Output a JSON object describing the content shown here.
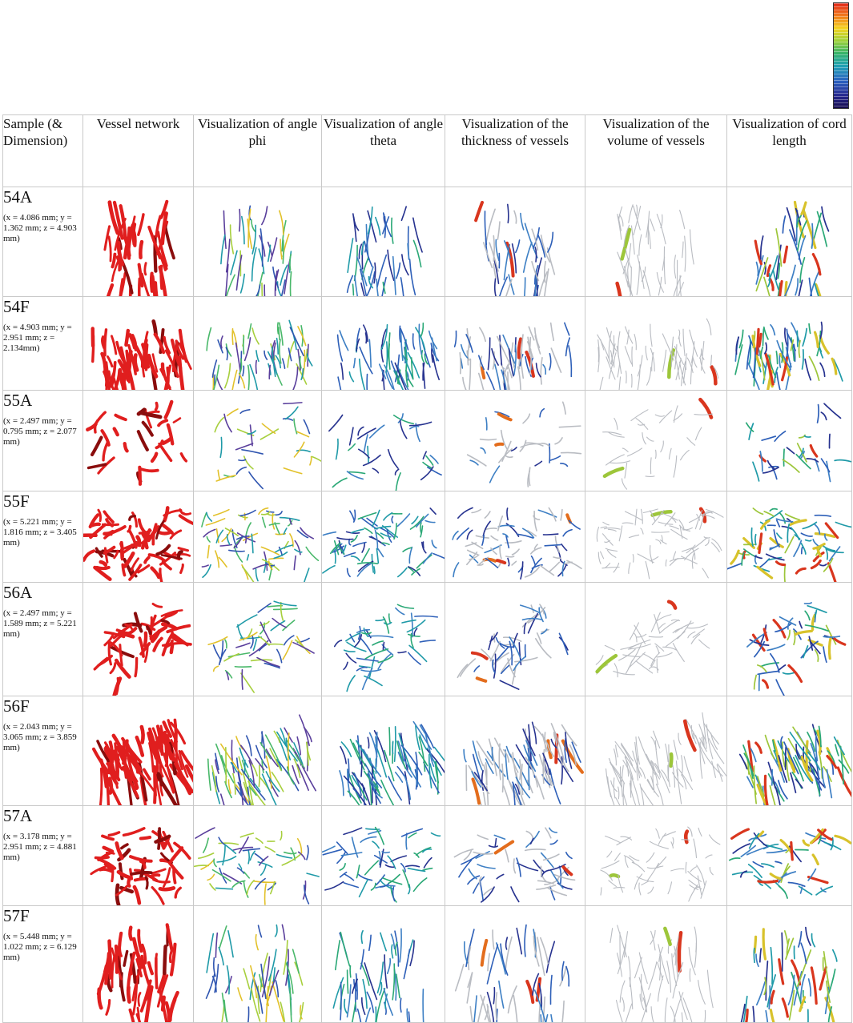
{
  "colorbar": {
    "colors": [
      "#e2281b",
      "#f07a1c",
      "#f4d21e",
      "#9dd23a",
      "#34b26b",
      "#1fa0b5",
      "#2b62c0",
      "#27288f",
      "#150b4d"
    ]
  },
  "headers": [
    "Sample (& Dimension)",
    "Vessel network",
    "Visualization of angle phi",
    "Visualization of angle theta",
    "Visualization of the thickness of vessels",
    "Visualization of the volume of vessels",
    "Visualization of cord length"
  ],
  "samples": [
    {
      "id": "54A",
      "dimension": "(x = 4.086 mm; y = 1.362 mm; z = 4.903 mm)"
    },
    {
      "id": "54F",
      "dimension": "(x = 4.903 mm; y = 2.951 mm; z = 2.134mm)"
    },
    {
      "id": "55A",
      "dimension": "(x = 2.497 mm; y = 0.795 mm; z = 2.077 mm)"
    },
    {
      "id": "55F",
      "dimension": "(x = 5.221 mm; y = 1.816 mm; z = 3.405 mm)"
    },
    {
      "id": "56A",
      "dimension": "(x = 2.497 mm; y = 1.589 mm; z = 5.221 mm)"
    },
    {
      "id": "56F",
      "dimension": "(x = 2.043 mm; y = 3.065 mm; z = 3.859 mm)"
    },
    {
      "id": "57A",
      "dimension": "(x = 3.178 mm; y = 2.951 mm; z = 4.881 mm)"
    },
    {
      "id": "57F",
      "dimension": "(x = 5.448 mm; y = 1.022 mm; z = 6.129 mm)"
    }
  ],
  "colors": {
    "network_red": "#e01e1e",
    "network_dark": "#8a0d0d",
    "thin_gray": "#b9bcc2",
    "palette_blue": [
      "#26328f",
      "#2d5fb8",
      "#3d7fc4",
      "#1f9aa8",
      "#2aa876"
    ],
    "palette_mix": [
      "#2f55b0",
      "#1f9aa8",
      "#49b86a",
      "#a7cf3d",
      "#e2c12a",
      "#5a3f9c"
    ],
    "palette_hot": [
      "#d9361e",
      "#e36d1d",
      "#9dc63a",
      "#d8c22b"
    ]
  }
}
